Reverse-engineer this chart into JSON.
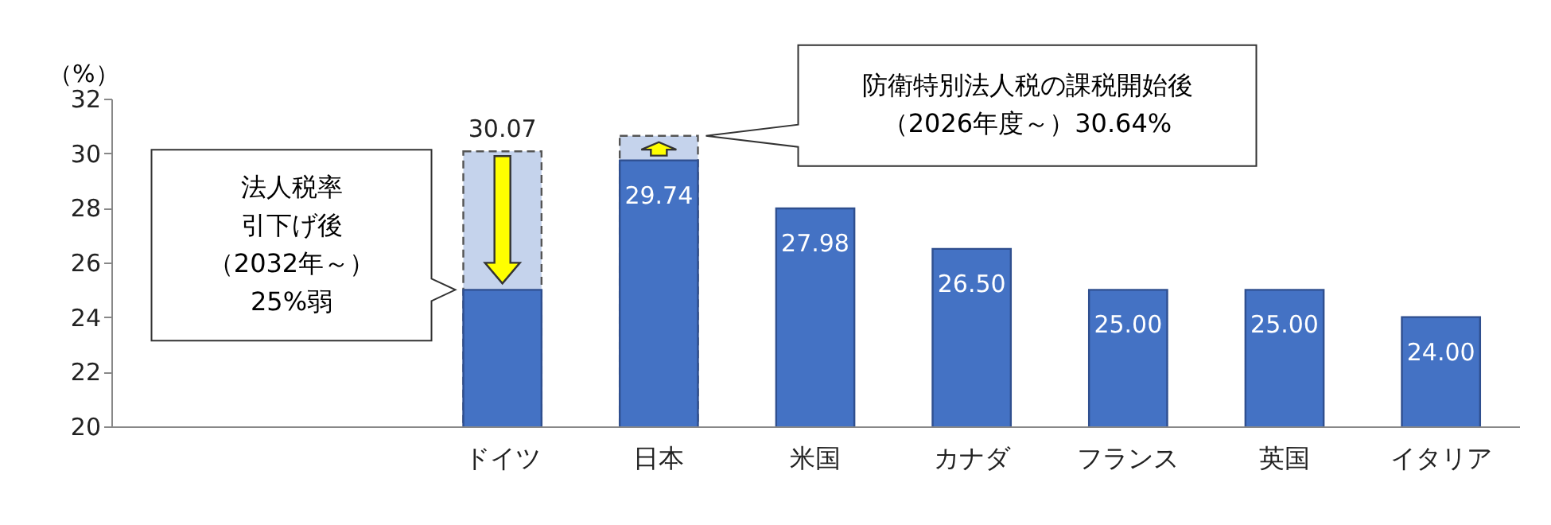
{
  "chart_data": {
    "type": "bar",
    "ylabel": "（%）",
    "categories": [
      null,
      null,
      "ドイツ",
      "日本",
      "米国",
      "カナダ",
      "フランス",
      "英国",
      "イタリア"
    ],
    "ylim": [
      20,
      32
    ],
    "yticks": [
      20,
      22,
      24,
      26,
      28,
      30,
      32
    ],
    "grid": false,
    "series": [
      {
        "color": "#4472c4",
        "values": [
          null,
          null,
          25,
          29.74,
          27.98,
          26.5,
          25,
          25,
          24
        ],
        "value_labels": [
          null,
          null,
          null,
          "29.74",
          "27.98",
          "26.50",
          "25.00",
          "25.00",
          "24.00"
        ]
      },
      {
        "color": "#c5d3ec",
        "line_style": "dashed",
        "values": [
          null,
          null,
          30.07,
          30.64,
          null,
          null,
          null,
          null,
          null
        ],
        "value_labels": [
          null,
          null,
          "30.07",
          null,
          null,
          null,
          null,
          null,
          null
        ]
      }
    ],
    "annotations": [
      "法人税率引下げ後（2032年～）25%弱",
      "防衛特別法人税の課税開始後（2026年度～）30.64%"
    ]
  }
}
